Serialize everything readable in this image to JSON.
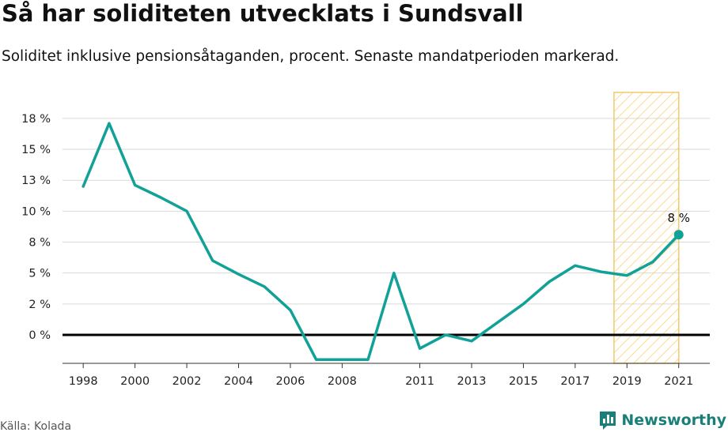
{
  "header": {
    "title": "Så har soliditeten utvecklats i Sundsvall",
    "subtitle": "Soliditet inklusive pensionsåtaganden, procent. Senaste mandatperioden markerad."
  },
  "footer": {
    "source": "Källa: Kolada",
    "brand": "Newsworthy",
    "brand_icon": "bar-chart-logo-icon"
  },
  "colors": {
    "line": "#12a197",
    "highlight_fill": "#f5c542",
    "highlight_stroke": "#f0c96a",
    "zero_line": "#000000",
    "grid": "#d9d9d9",
    "brand": "#1a7f7a"
  },
  "chart_data": {
    "type": "line",
    "x": [
      1998,
      1999,
      2000,
      2001,
      2002,
      2003,
      2004,
      2005,
      2006,
      2007,
      2008,
      2009,
      2010,
      2011,
      2012,
      2013,
      2014,
      2015,
      2016,
      2017,
      2018,
      2019,
      2020,
      2021
    ],
    "series": [
      {
        "values": [
          12.0,
          17.1,
          12.1,
          11.1,
          10.0,
          6.0,
          4.9,
          3.9,
          2.0,
          -2.0,
          -2.0,
          -2.0,
          5.0,
          -1.1,
          0.0,
          -0.5,
          1.0,
          2.5,
          4.3,
          5.6,
          5.1,
          4.8,
          5.9,
          8.1
        ]
      }
    ],
    "x_ticks": [
      "1998",
      "2000",
      "2002",
      "2004",
      "2006",
      "2008",
      "2011",
      "2013",
      "2015",
      "2017",
      "2019",
      "2021"
    ],
    "x_tick_values": [
      1998,
      2000,
      2002,
      2004,
      2006,
      2008,
      2011,
      2013,
      2015,
      2017,
      2019,
      2021
    ],
    "y_ticks": [
      "0 %",
      "2 %",
      "5 %",
      "8 %",
      "10 %",
      "13 %",
      "15 %",
      "18 %"
    ],
    "y_tick_values": [
      0,
      2.5,
      5,
      7.5,
      10,
      12.5,
      15,
      17.5
    ],
    "ylim": [
      -2.3,
      19.6
    ],
    "xlim": [
      1997.2,
      2022.2
    ],
    "highlight": {
      "from": 2018.5,
      "to": 2021.0
    },
    "end_label": "8 %",
    "grid": true,
    "legend": "none"
  }
}
